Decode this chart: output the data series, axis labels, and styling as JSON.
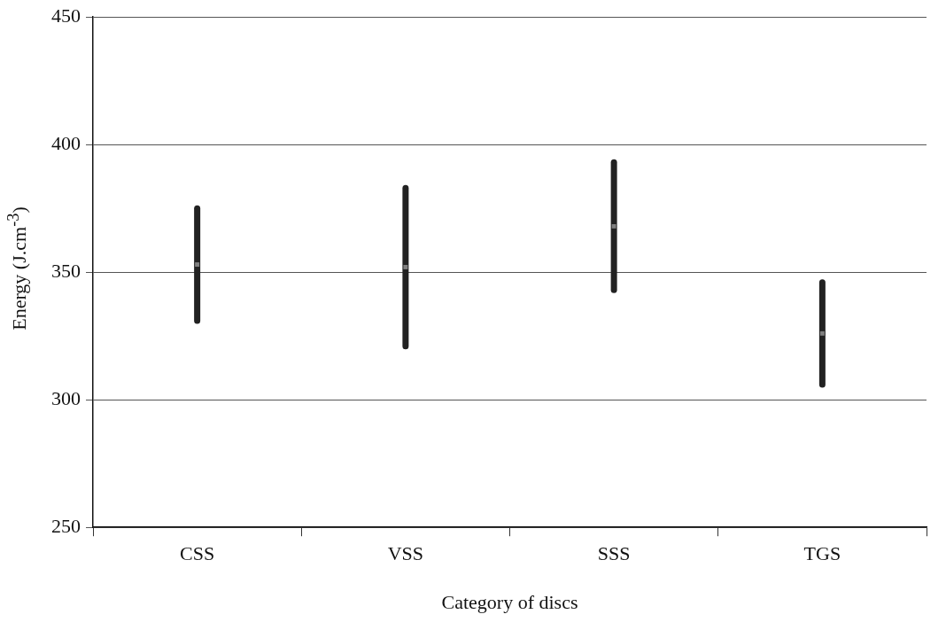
{
  "chart_data": {
    "type": "scatter",
    "xlabel": "Category of discs",
    "ylabel": "Energy (J.cm$^{-3}$)",
    "categories": [
      "CSS",
      "VSS",
      "SSS",
      "TGS"
    ],
    "series": [
      {
        "color": "#808080",
        "values": [
          353,
          352,
          368,
          326
        ],
        "errors": [
          22,
          31,
          25,
          20
        ]
      }
    ],
    "ylim": [
      250,
      450
    ],
    "yticks": [
      250,
      300,
      350,
      400,
      450
    ],
    "grid": "y",
    "marker": "square"
  }
}
